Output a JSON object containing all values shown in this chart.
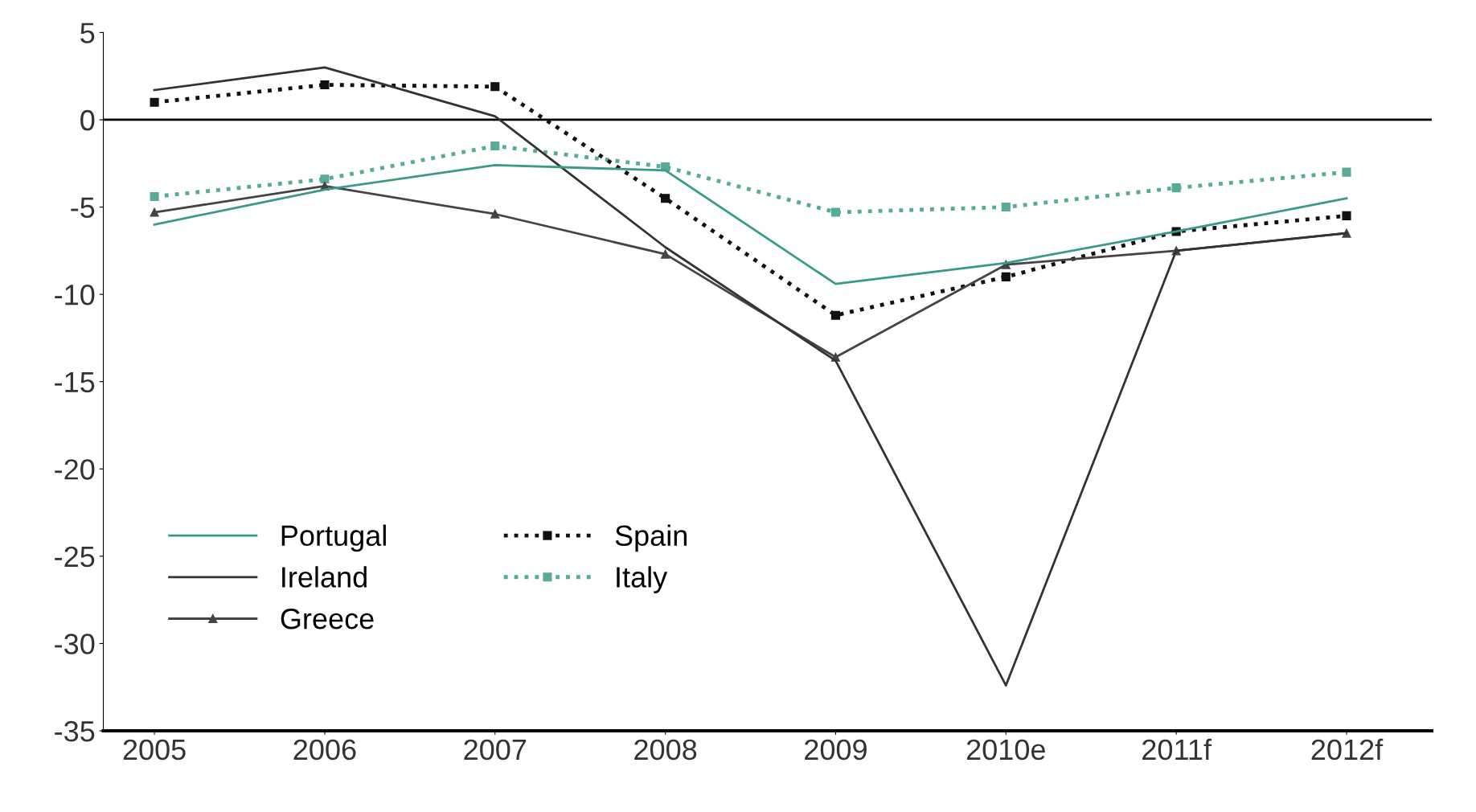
{
  "chart_data": {
    "type": "line",
    "categories": [
      "2005",
      "2006",
      "2007",
      "2008",
      "2009",
      "2010e",
      "2011f",
      "2012f"
    ],
    "series": [
      {
        "name": "Portugal",
        "color": "#3a9a8a",
        "line_style": "solid",
        "marker": "none",
        "values": [
          -6.0,
          -4.0,
          -2.6,
          -2.9,
          -9.4,
          -8.2,
          -6.4,
          -4.5
        ]
      },
      {
        "name": "Ireland",
        "color": "#333333",
        "line_style": "solid",
        "marker": "none",
        "values": [
          1.7,
          3.0,
          0.2,
          -7.3,
          -13.8,
          -32.4,
          -7.5,
          -6.5
        ]
      },
      {
        "name": "Greece",
        "color": "#444444",
        "line_style": "solid",
        "marker": "triangle",
        "values": [
          -5.3,
          -3.8,
          -5.4,
          -7.7,
          -13.6,
          -8.3,
          -7.5,
          -6.5
        ]
      },
      {
        "name": "Spain",
        "color": "#111111",
        "line_style": "dotted",
        "marker": "square",
        "values": [
          1.0,
          2.0,
          1.9,
          -4.5,
          -11.2,
          -9.0,
          -6.4,
          -5.5
        ]
      },
      {
        "name": "Italy",
        "color": "#5aaa9a",
        "line_style": "dotted",
        "marker": "square",
        "values": [
          -4.4,
          -3.4,
          -1.5,
          -2.7,
          -5.3,
          -5.0,
          -3.9,
          -3.0
        ]
      }
    ],
    "ylim": [
      -35,
      5
    ],
    "yticks": [
      -35,
      -30,
      -25,
      -20,
      -15,
      -10,
      -5,
      0,
      5
    ],
    "ref_lines": [
      {
        "axis": "y",
        "value": 0,
        "color": "#000000",
        "line_style": "solid"
      }
    ],
    "grid": false,
    "legend": "bottom left"
  }
}
